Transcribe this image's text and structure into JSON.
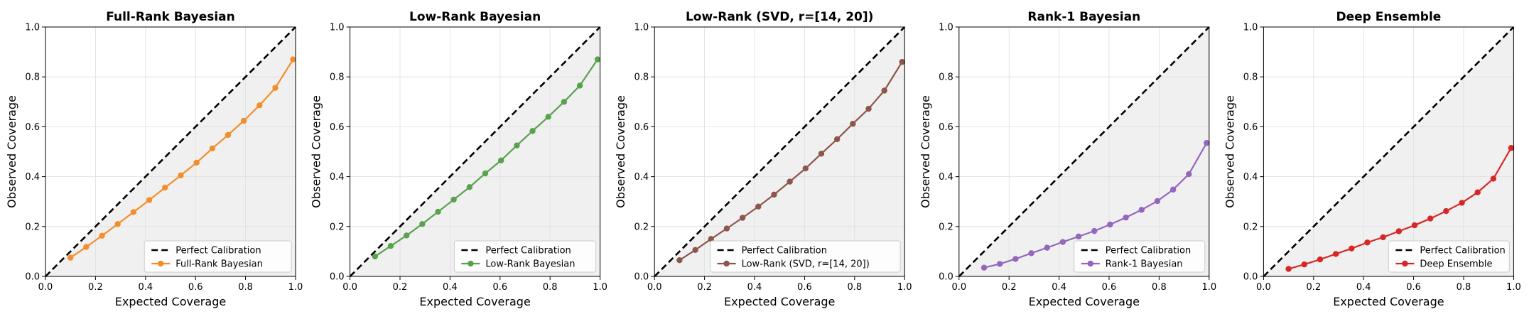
{
  "chart_data": [
    {
      "type": "line",
      "title": "Full-Rank Bayesian",
      "xlabel": "Expected Coverage",
      "ylabel": "Observed Coverage",
      "xlim": [
        0,
        1
      ],
      "ylim": [
        0,
        1
      ],
      "xticks": [
        "0.0",
        "0.2",
        "0.4",
        "0.6",
        "0.8",
        "1.0"
      ],
      "yticks": [
        "0.0",
        "0.2",
        "0.4",
        "0.6",
        "0.8",
        "1.0"
      ],
      "grid": true,
      "legend_position": "bottom-right",
      "reference_series": {
        "name": "Perfect Calibration",
        "x": [
          0,
          1
        ],
        "y": [
          0,
          1
        ],
        "color": "#000000"
      },
      "series": [
        {
          "name": "Full-Rank Bayesian",
          "color": "#F28E2B",
          "x": [
            0.1,
            0.163,
            0.226,
            0.289,
            0.352,
            0.415,
            0.478,
            0.541,
            0.604,
            0.667,
            0.73,
            0.793,
            0.856,
            0.919,
            0.99
          ],
          "y": [
            0.075,
            0.118,
            0.163,
            0.21,
            0.258,
            0.306,
            0.356,
            0.405,
            0.456,
            0.513,
            0.567,
            0.624,
            0.686,
            0.756,
            0.87
          ]
        }
      ]
    },
    {
      "type": "line",
      "title": "Low-Rank Bayesian",
      "xlabel": "Expected Coverage",
      "ylabel": "Observed Coverage",
      "xlim": [
        0,
        1
      ],
      "ylim": [
        0,
        1
      ],
      "xticks": [
        "0.0",
        "0.2",
        "0.4",
        "0.6",
        "0.8",
        "1.0"
      ],
      "yticks": [
        "0.0",
        "0.2",
        "0.4",
        "0.6",
        "0.8",
        "1.0"
      ],
      "grid": true,
      "legend_position": "bottom-right",
      "reference_series": {
        "name": "Perfect Calibration",
        "x": [
          0,
          1
        ],
        "y": [
          0,
          1
        ],
        "color": "#000000"
      },
      "series": [
        {
          "name": "Low-Rank Bayesian",
          "color": "#59A14F",
          "x": [
            0.1,
            0.163,
            0.226,
            0.289,
            0.352,
            0.415,
            0.478,
            0.541,
            0.604,
            0.667,
            0.73,
            0.793,
            0.856,
            0.919,
            0.99
          ],
          "y": [
            0.08,
            0.122,
            0.164,
            0.21,
            0.259,
            0.308,
            0.358,
            0.413,
            0.465,
            0.525,
            0.583,
            0.64,
            0.7,
            0.765,
            0.87
          ]
        }
      ]
    },
    {
      "type": "line",
      "title": "Low-Rank (SVD, r=[14, 20])",
      "xlabel": "Expected Coverage",
      "ylabel": "Observed Coverage",
      "xlim": [
        0,
        1
      ],
      "ylim": [
        0,
        1
      ],
      "xticks": [
        "0.0",
        "0.2",
        "0.4",
        "0.6",
        "0.8",
        "1.0"
      ],
      "yticks": [
        "0.0",
        "0.2",
        "0.4",
        "0.6",
        "0.8",
        "1.0"
      ],
      "grid": true,
      "legend_position": "bottom-right",
      "reference_series": {
        "name": "Perfect Calibration",
        "x": [
          0,
          1
        ],
        "y": [
          0,
          1
        ],
        "color": "#000000"
      },
      "series": [
        {
          "name": "Low-Rank (SVD, r=[14, 20])",
          "color": "#8C564B",
          "x": [
            0.1,
            0.163,
            0.226,
            0.289,
            0.352,
            0.415,
            0.478,
            0.541,
            0.604,
            0.667,
            0.73,
            0.793,
            0.856,
            0.919,
            0.99
          ],
          "y": [
            0.065,
            0.106,
            0.15,
            0.192,
            0.235,
            0.28,
            0.328,
            0.38,
            0.433,
            0.492,
            0.55,
            0.612,
            0.672,
            0.745,
            0.86
          ]
        }
      ]
    },
    {
      "type": "line",
      "title": "Rank-1 Bayesian",
      "xlabel": "Expected Coverage",
      "ylabel": "Observed Coverage",
      "xlim": [
        0,
        1
      ],
      "ylim": [
        0,
        1
      ],
      "xticks": [
        "0.0",
        "0.2",
        "0.4",
        "0.6",
        "0.8",
        "1.0"
      ],
      "yticks": [
        "0.0",
        "0.2",
        "0.4",
        "0.6",
        "0.8",
        "1.0"
      ],
      "grid": true,
      "legend_position": "bottom-right",
      "reference_series": {
        "name": "Perfect Calibration",
        "x": [
          0,
          1
        ],
        "y": [
          0,
          1
        ],
        "color": "#000000"
      },
      "series": [
        {
          "name": "Rank-1 Bayesian",
          "color": "#9467BD",
          "x": [
            0.1,
            0.163,
            0.226,
            0.289,
            0.352,
            0.415,
            0.478,
            0.541,
            0.604,
            0.667,
            0.73,
            0.793,
            0.856,
            0.919,
            0.99
          ],
          "y": [
            0.035,
            0.05,
            0.07,
            0.093,
            0.115,
            0.138,
            0.16,
            0.182,
            0.208,
            0.236,
            0.267,
            0.302,
            0.348,
            0.41,
            0.535
          ]
        }
      ]
    },
    {
      "type": "line",
      "title": "Deep Ensemble",
      "xlabel": "Expected Coverage",
      "ylabel": "Observed Coverage",
      "xlim": [
        0,
        1
      ],
      "ylim": [
        0,
        1
      ],
      "xticks": [
        "0.0",
        "0.2",
        "0.4",
        "0.6",
        "0.8",
        "1.0"
      ],
      "yticks": [
        "0.0",
        "0.2",
        "0.4",
        "0.6",
        "0.8",
        "1.0"
      ],
      "grid": true,
      "legend_position": "bottom-right",
      "reference_series": {
        "name": "Perfect Calibration",
        "x": [
          0,
          1
        ],
        "y": [
          0,
          1
        ],
        "color": "#000000"
      },
      "series": [
        {
          "name": "Deep Ensemble",
          "color": "#D62728",
          "x": [
            0.1,
            0.163,
            0.226,
            0.289,
            0.352,
            0.415,
            0.478,
            0.541,
            0.604,
            0.667,
            0.73,
            0.793,
            0.856,
            0.919,
            0.99
          ],
          "y": [
            0.03,
            0.048,
            0.068,
            0.09,
            0.112,
            0.136,
            0.157,
            0.181,
            0.205,
            0.232,
            0.262,
            0.295,
            0.337,
            0.392,
            0.515
          ]
        }
      ]
    }
  ]
}
